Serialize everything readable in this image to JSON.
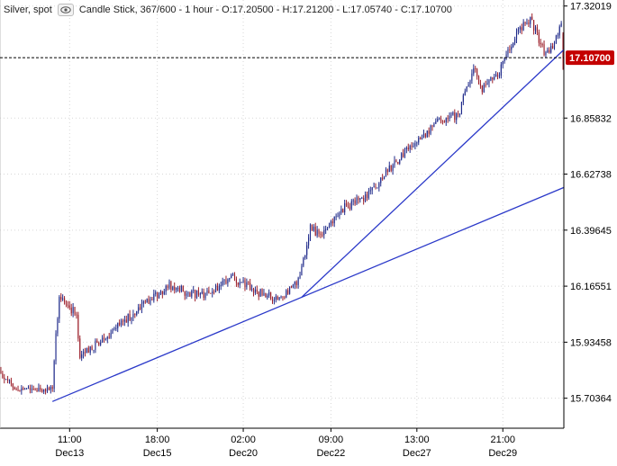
{
  "header": {
    "instrument": "Silver, spot",
    "chart_desc": "Candle Stick, 367/600 - 1 hour - O:17.20500 - H:17.21200 - L:17.05740 - C:17.10700",
    "eye_icon": "eye-icon"
  },
  "colors": {
    "up_candle": "#1f2a8a",
    "down_candle": "#9c1f2a",
    "trendline": "#2b39c9",
    "last_price_badge": "#c40000",
    "axis": "#000000",
    "grid": "#d7d7d7"
  },
  "chart_data": {
    "type": "candlestick",
    "instrument": "Silver, spot",
    "timeframe": "1 hour",
    "bars_shown": "367/600",
    "last_bar": {
      "open": 17.205,
      "high": 17.212,
      "low": 17.0574,
      "close": 17.107
    },
    "ylim": [
      15.58,
      17.345
    ],
    "y_ticks": [
      17.32019,
      16.85832,
      16.62738,
      16.39645,
      16.16551,
      15.93458,
      15.70364
    ],
    "y_tick_labels": [
      "17.32019",
      "16.85832",
      "16.62738",
      "16.39645",
      "16.16551",
      "15.93458",
      "15.70364"
    ],
    "x_tick_labels": [
      {
        "time": "11:00",
        "date": "Dec13"
      },
      {
        "time": "18:00",
        "date": "Dec15"
      },
      {
        "time": "02:00",
        "date": "Dec20"
      },
      {
        "time": "09:00",
        "date": "Dec22"
      },
      {
        "time": "13:00",
        "date": "Dec27"
      },
      {
        "time": "21:00",
        "date": "Dec29"
      }
    ],
    "last_price": 17.107,
    "last_price_label": "17.10700",
    "grid": true,
    "anchors": [
      {
        "at": 0,
        "price": 15.79
      },
      {
        "at": 10,
        "price": 15.74
      },
      {
        "at": 30,
        "price": 15.74
      },
      {
        "at": 32,
        "price": 15.96
      },
      {
        "at": 34,
        "price": 16.12
      },
      {
        "at": 44,
        "price": 16.05
      },
      {
        "at": 46,
        "price": 15.88
      },
      {
        "at": 58,
        "price": 15.94
      },
      {
        "at": 80,
        "price": 16.07
      },
      {
        "at": 98,
        "price": 16.17
      },
      {
        "at": 108,
        "price": 16.14
      },
      {
        "at": 118,
        "price": 16.13
      },
      {
        "at": 135,
        "price": 16.2
      },
      {
        "at": 150,
        "price": 16.14
      },
      {
        "at": 162,
        "price": 16.11
      },
      {
        "at": 174,
        "price": 16.2
      },
      {
        "at": 180,
        "price": 16.41
      },
      {
        "at": 186,
        "price": 16.37
      },
      {
        "at": 200,
        "price": 16.49
      },
      {
        "at": 214,
        "price": 16.54
      },
      {
        "at": 226,
        "price": 16.65
      },
      {
        "at": 240,
        "price": 16.75
      },
      {
        "at": 255,
        "price": 16.85
      },
      {
        "at": 266,
        "price": 16.87
      },
      {
        "at": 275,
        "price": 17.07
      },
      {
        "at": 280,
        "price": 16.98
      },
      {
        "at": 290,
        "price": 17.05
      },
      {
        "at": 300,
        "price": 17.21
      },
      {
        "at": 308,
        "price": 17.27
      },
      {
        "at": 316,
        "price": 17.13
      },
      {
        "at": 320,
        "price": 17.14
      },
      {
        "at": 326,
        "price": 17.25
      }
    ],
    "trendlines": [
      {
        "from": {
          "at": 30,
          "price": 15.69
        },
        "to": {
          "at": 175,
          "price": 16.12
        },
        "extend": true
      },
      {
        "from": {
          "at": 175,
          "price": 16.12
        },
        "to": {
          "at": 326,
          "price": 17.13
        },
        "extend": true
      }
    ]
  }
}
